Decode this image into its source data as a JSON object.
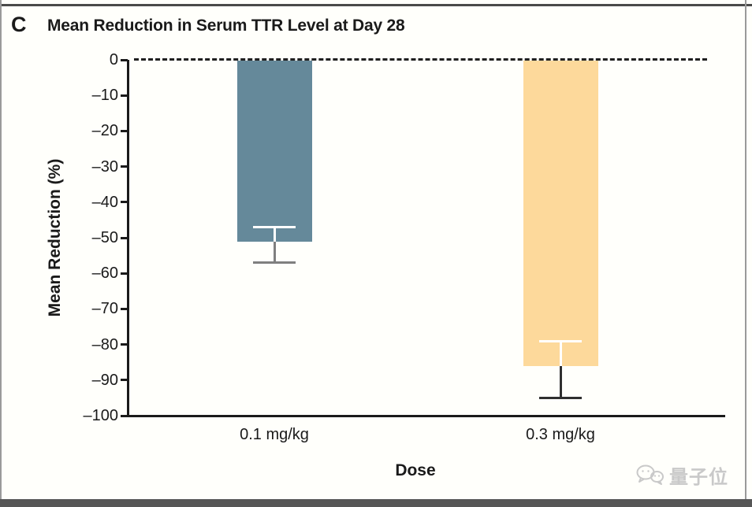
{
  "panel": {
    "label": "C",
    "title": "Mean Reduction in Serum TTR Level at Day 28"
  },
  "chart_data": {
    "type": "bar",
    "title": "Mean Reduction in Serum TTR Level at Day 28",
    "xlabel": "Dose",
    "ylabel": "Mean Reduction (%)",
    "ylim": [
      0,
      -100
    ],
    "grid": false,
    "legend": false,
    "zero_baseline_style": "dashed",
    "categories": [
      "0.1 mg/kg",
      "0.3 mg/kg"
    ],
    "values": [
      -51,
      -86
    ],
    "error_bars": [
      {
        "upper": -47,
        "lower": -57
      },
      {
        "upper": -79,
        "lower": -95
      }
    ],
    "bar_colors": [
      "#65899A",
      "#FDD99B"
    ],
    "error_bar_colors": [
      "#7F7F7F",
      "#2F2F2F"
    ],
    "error_bar_inner_color": "#FFFFFF",
    "yticks": [
      {
        "value": 0,
        "label": "0"
      },
      {
        "value": -10,
        "label": "–10"
      },
      {
        "value": -20,
        "label": "–20"
      },
      {
        "value": -30,
        "label": "–30"
      },
      {
        "value": -40,
        "label": "–40"
      },
      {
        "value": -50,
        "label": "–50"
      },
      {
        "value": -60,
        "label": "–60"
      },
      {
        "value": -70,
        "label": "–70"
      },
      {
        "value": -80,
        "label": "–80"
      },
      {
        "value": -90,
        "label": "–90"
      },
      {
        "value": -100,
        "label": "–100"
      }
    ]
  },
  "watermark": {
    "text": "量子位",
    "icon": "wechat-chat-bubbles-icon",
    "color": "#C9C9C9"
  }
}
